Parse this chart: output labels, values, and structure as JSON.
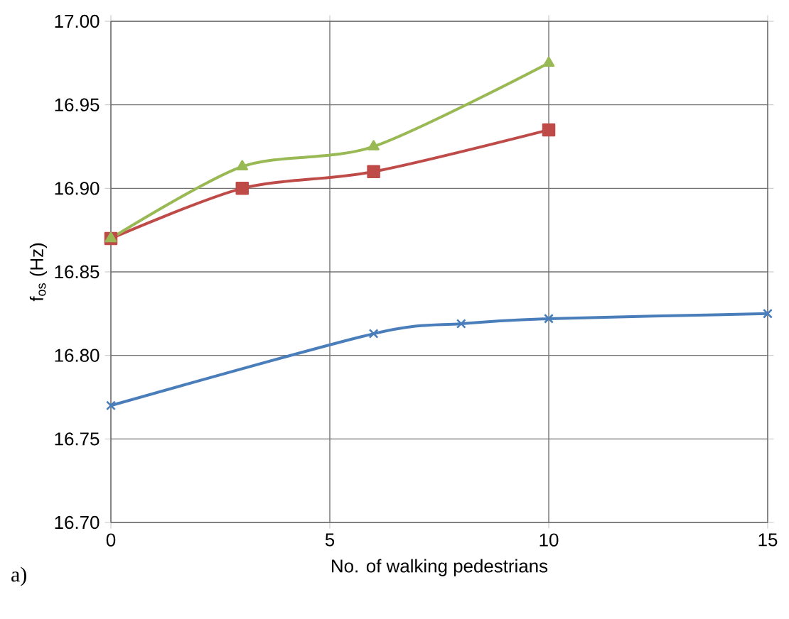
{
  "chart_data": {
    "type": "line",
    "xlabel": "No. of walking pedestrians",
    "ylabel": "f$_{os}$ (Hz)",
    "xlim": [
      0,
      15
    ],
    "xticks": [
      0,
      5,
      10,
      15
    ],
    "ylim": [
      16.7,
      17.0
    ],
    "yticks": [
      {
        "value": 16.7,
        "label": "16.70"
      },
      {
        "value": 16.75,
        "label": "16.75"
      },
      {
        "value": 16.8,
        "label": "16.80"
      },
      {
        "value": 16.85,
        "label": "16.85"
      },
      {
        "value": 16.9,
        "label": "16.90"
      },
      {
        "value": 16.95,
        "label": "16.95"
      },
      {
        "value": 17.0,
        "label": "17.00"
      }
    ],
    "grid": true,
    "line_style": "solid",
    "series": [
      {
        "color": "#4a7ebb",
        "marker": "cross",
        "x": [
          0,
          6,
          8,
          10,
          15
        ],
        "values": [
          16.77,
          16.813,
          16.819,
          16.822,
          16.825
        ]
      },
      {
        "color": "#be4b48",
        "marker": "square",
        "x": [
          0,
          3,
          6,
          10
        ],
        "values": [
          16.87,
          16.9,
          16.91,
          16.935
        ]
      },
      {
        "color": "#98b954",
        "marker": "triangle",
        "x": [
          0,
          3,
          6,
          10
        ],
        "values": [
          16.87,
          16.913,
          16.925,
          16.975
        ]
      }
    ],
    "annotations": [
      "a)"
    ]
  }
}
